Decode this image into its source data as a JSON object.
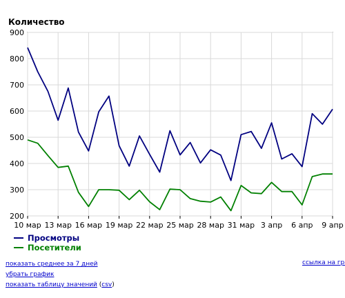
{
  "chart_data": {
    "type": "line",
    "ylabel": "Количество",
    "ylim": [
      200,
      900
    ],
    "yticks": [
      900,
      800,
      700,
      600,
      500,
      400,
      300,
      200
    ],
    "xtick_labels": [
      "10 мар",
      "13 мар",
      "16 мар",
      "19 мар",
      "22 мар",
      "25 мар",
      "28 мар",
      "31 мар",
      "3 апр",
      "6 апр",
      "9 апр"
    ],
    "xtick_step": 3,
    "grid": true,
    "legend": "bottom-left",
    "series": [
      {
        "name": "Просмотры",
        "color": "#000080",
        "values": [
          842,
          750,
          675,
          565,
          688,
          520,
          448,
          597,
          657,
          468,
          390,
          505,
          435,
          367,
          525,
          433,
          480,
          402,
          452,
          432,
          335,
          510,
          522,
          458,
          555,
          417,
          437,
          388,
          590,
          550,
          607
        ]
      },
      {
        "name": "Посетители",
        "color": "#008000",
        "values": [
          490,
          477,
          430,
          385,
          390,
          290,
          236,
          300,
          300,
          298,
          262,
          298,
          254,
          224,
          302,
          300,
          266,
          256,
          253,
          272,
          220,
          316,
          288,
          285,
          328,
          293,
          293,
          242,
          350,
          360,
          360
        ]
      }
    ]
  },
  "links": {
    "avg7": "показать среднее за 7 дней",
    "remove": "убрать график",
    "table": "показать таблицу значений",
    "csv": "csv",
    "paren_open": "(",
    "paren_close": ")",
    "chart_link": "ссылка на граф"
  }
}
